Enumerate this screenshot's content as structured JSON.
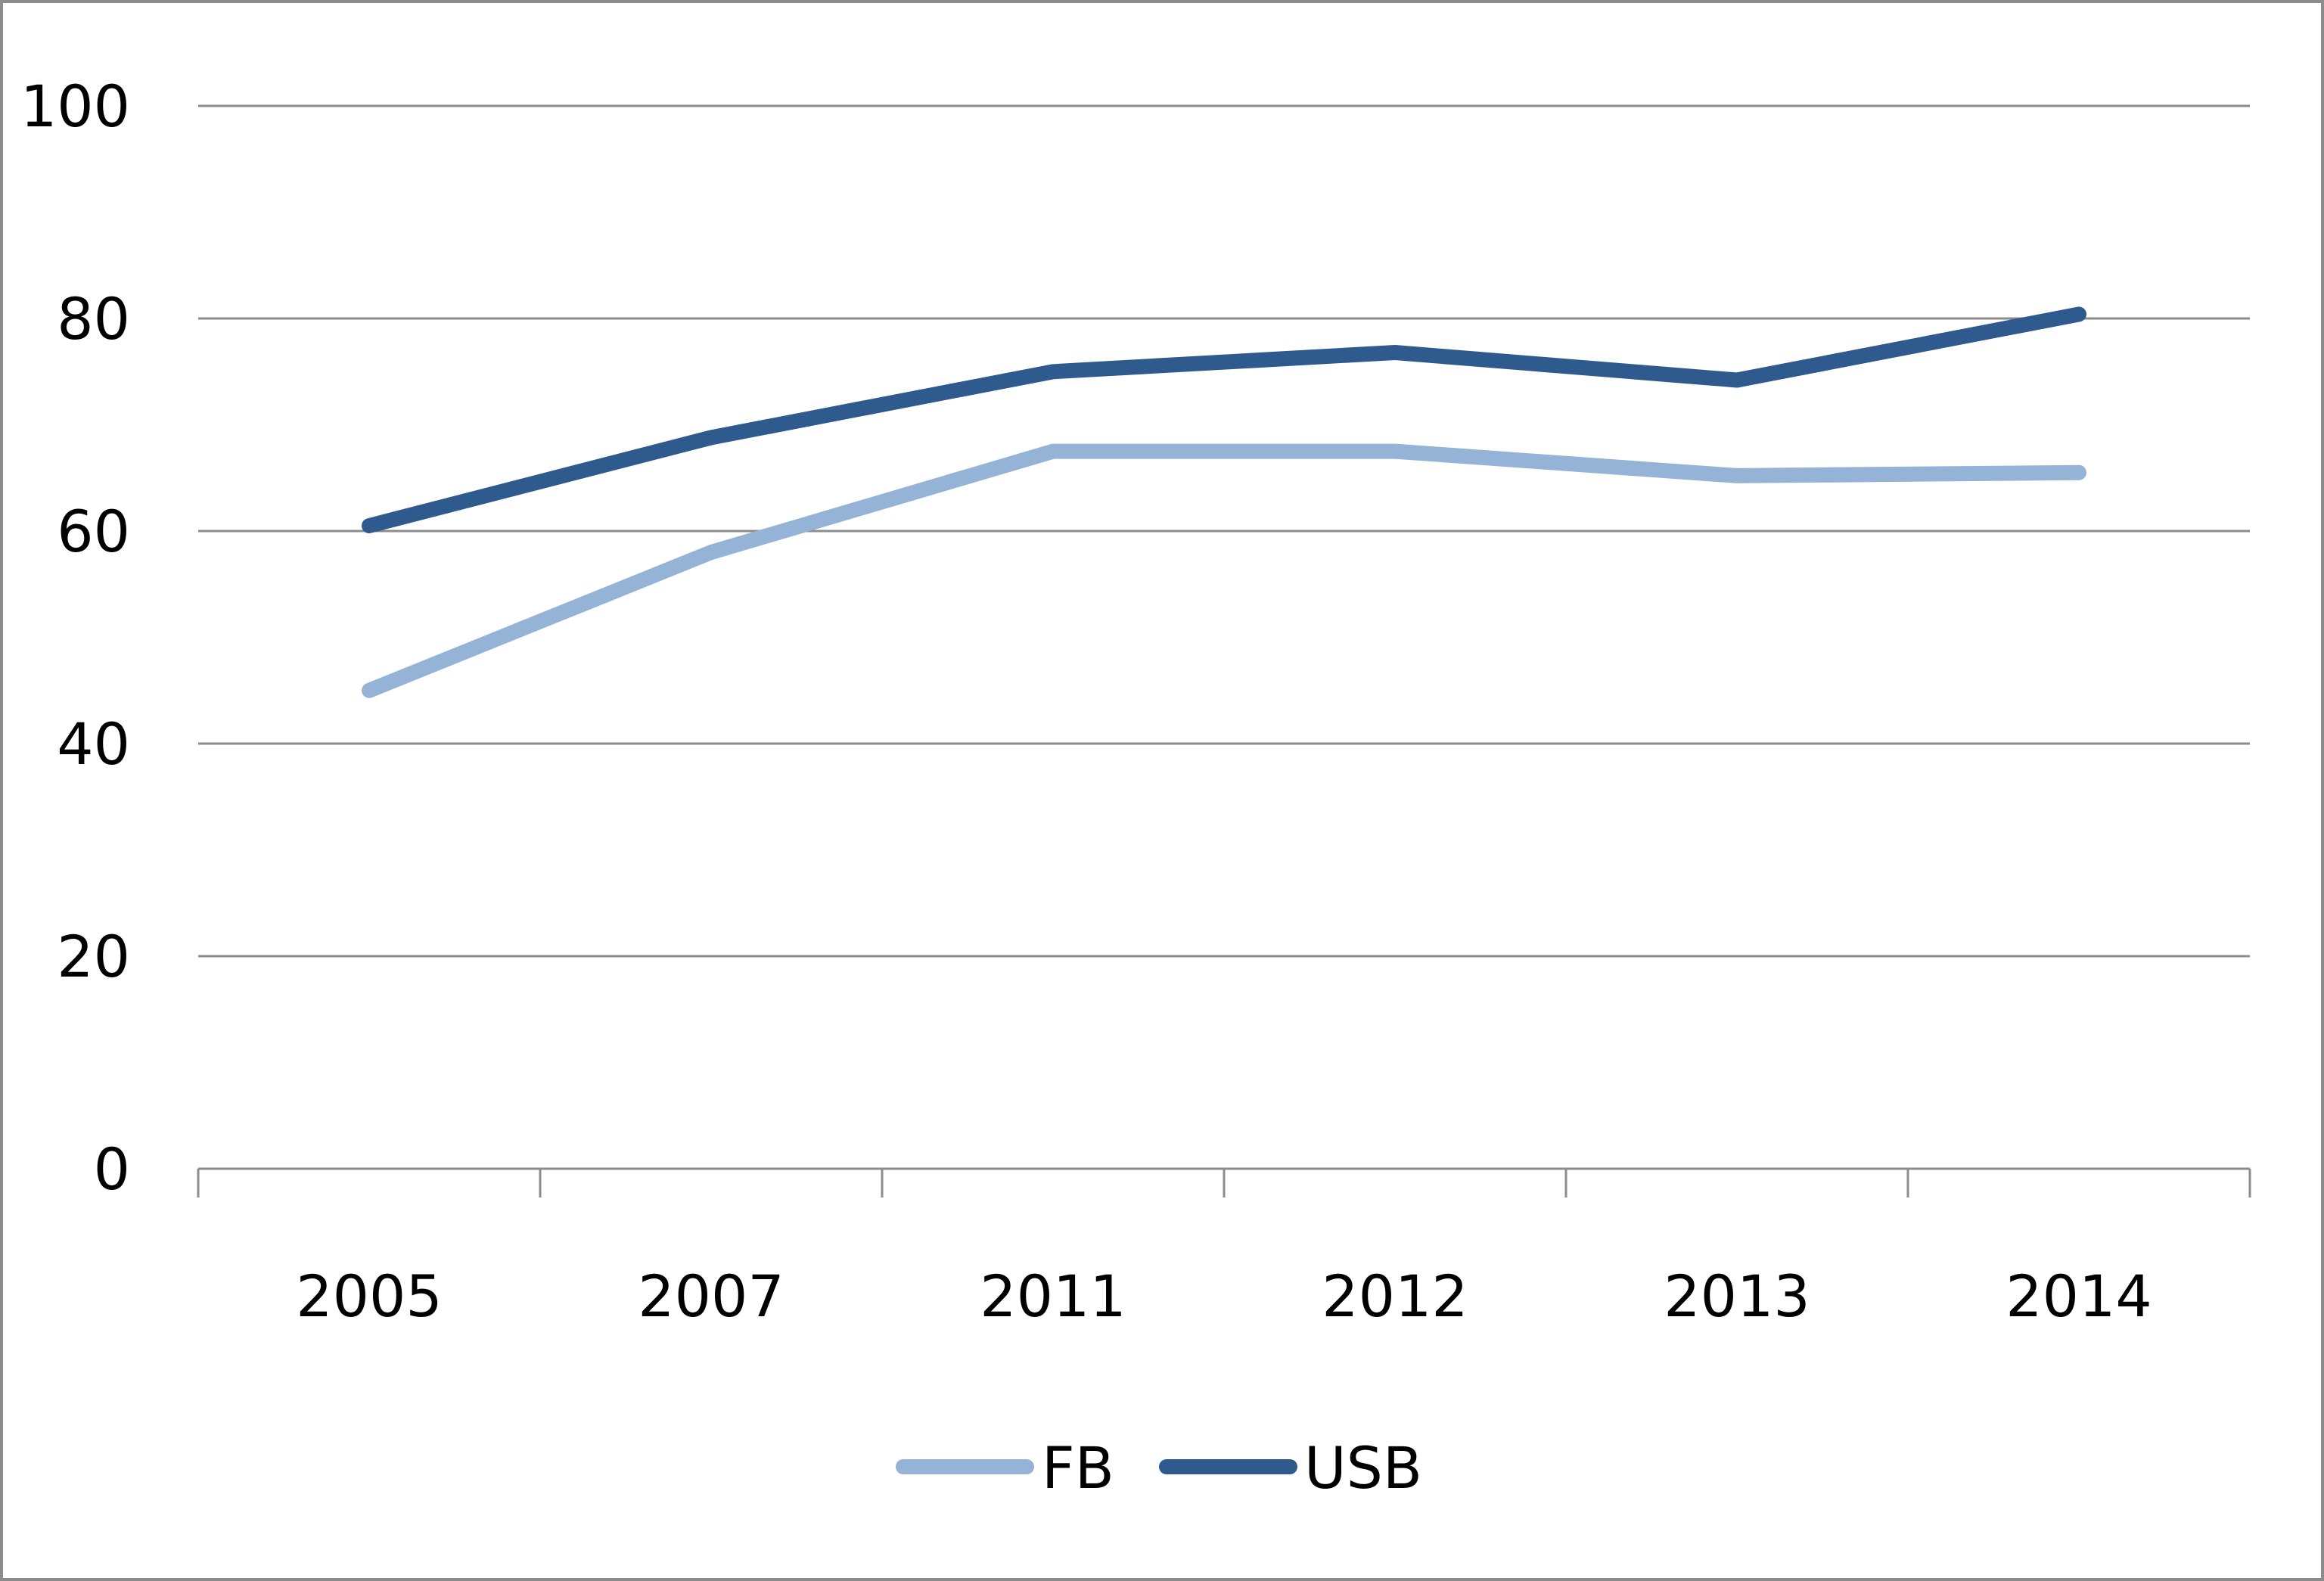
{
  "chart_data": {
    "type": "line",
    "categories": [
      "2005",
      "2007",
      "2011",
      "2012",
      "2013",
      "2014"
    ],
    "series": [
      {
        "name": "FB",
        "color": "#95B3D7",
        "values": [
          45,
          58,
          67.5,
          67.5,
          65.2,
          65.5
        ]
      },
      {
        "name": "USB",
        "color": "#2E5A8E",
        "values": [
          60.5,
          68.8,
          75,
          76.8,
          74.2,
          80.4
        ]
      }
    ],
    "ylim": [
      0,
      100
    ],
    "yticks": [
      0,
      20,
      40,
      60,
      80,
      100
    ],
    "title": "",
    "xlabel": "",
    "ylabel": "",
    "grid": true,
    "legend": "bottom-center"
  }
}
